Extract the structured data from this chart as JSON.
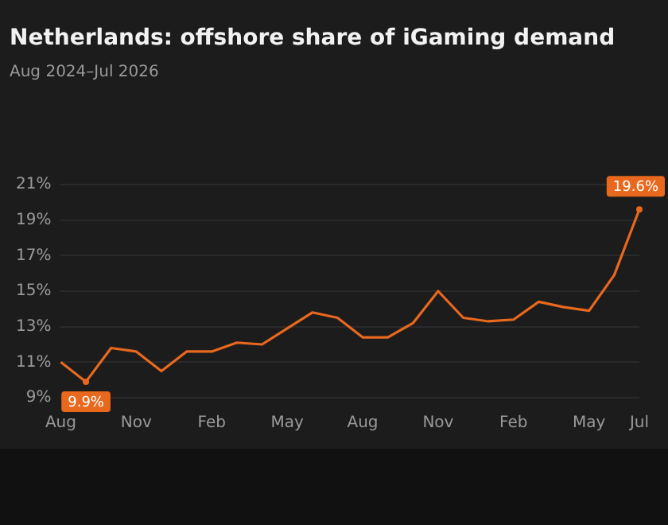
{
  "chart_data": {
    "type": "line",
    "title": "Netherlands: offshore share of iGaming demand",
    "subtitle": "Aug 2024–Jul 2026",
    "categories": [
      "Aug",
      null,
      null,
      "Nov",
      null,
      null,
      "Feb",
      null,
      null,
      "May",
      null,
      null,
      "Aug",
      null,
      null,
      "Nov",
      null,
      null,
      "Feb",
      null,
      null,
      "May",
      null,
      "Jul"
    ],
    "series": [
      {
        "color": "#e8681e",
        "values": [
          11.0,
          9.9,
          11.8,
          11.6,
          10.5,
          11.6,
          11.6,
          12.1,
          12.0,
          12.9,
          13.8,
          13.5,
          12.4,
          12.4,
          13.2,
          15.0,
          13.5,
          13.3,
          13.4,
          14.4,
          14.1,
          13.9,
          15.9,
          19.6
        ],
        "value_labels": [
          null,
          "9.9%",
          null,
          null,
          null,
          null,
          null,
          null,
          null,
          null,
          null,
          null,
          null,
          null,
          null,
          null,
          null,
          null,
          null,
          null,
          null,
          null,
          null,
          "19.6%"
        ]
      }
    ],
    "ylim": [
      9,
      21
    ],
    "yticks": [
      {
        "value": 9,
        "label": "9%"
      },
      {
        "value": 11,
        "label": "11%"
      },
      {
        "value": 13,
        "label": "13%"
      },
      {
        "value": 15,
        "label": "15%"
      },
      {
        "value": 17,
        "label": "17%"
      },
      {
        "value": 19,
        "label": "19%"
      },
      {
        "value": 21,
        "label": "21%"
      }
    ],
    "grid": "y",
    "legend": false,
    "marker": "none",
    "line_style": "solid"
  }
}
